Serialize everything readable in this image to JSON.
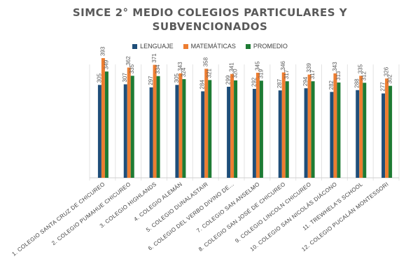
{
  "chart_data": {
    "type": "bar",
    "title_line1": "SIMCE 2° MEDIO COLEGIOS PARTICULARES Y",
    "title_line2": "SUBVENCIONADOS",
    "legend_position": "top",
    "ylim": [
      0,
      400
    ],
    "grid": false,
    "categories": [
      "1. COLEGIO SANTA CRUZ DE CHICUREO",
      "2. COLEGIO PUMAHUE CHICUREO",
      "3. COLEGIO HIGHLANDS",
      "4. COLEGIO ALEMÁN",
      "5. COLEGIO DUNALASTAIR",
      "6. COLEGIO DEL VERBO DIVINO DE...",
      "7. COLEGIO SAN ANSELMO",
      "8. COLEGIO SAN JOSÉ DE CHICUREO",
      "9. COLEGIO LINCOLN CHICUREO",
      "10. COLEGIO SAN NICOLÁS DIÁCONO",
      "11. TREWHELA'S SCHOOL",
      "12. COLEGIO PUCALÁN MONTESSORI"
    ],
    "series": [
      {
        "name": "LENGUAJE",
        "color": "#1f4e79",
        "values": [
          305,
          307,
          297,
          305,
          284,
          299,
          292,
          287,
          294,
          282,
          288,
          277
        ]
      },
      {
        "name": "MATEMÁTICAS",
        "color": "#ed7d31",
        "values": [
          393,
          362,
          371,
          343,
          358,
          341,
          345,
          346,
          339,
          343,
          335,
          326
        ]
      },
      {
        "name": "PROMEDIO",
        "color": "#1e7b34",
        "values": [
          349,
          335,
          334,
          324,
          321,
          320,
          319,
          317,
          317,
          313,
          312,
          302
        ]
      }
    ]
  }
}
